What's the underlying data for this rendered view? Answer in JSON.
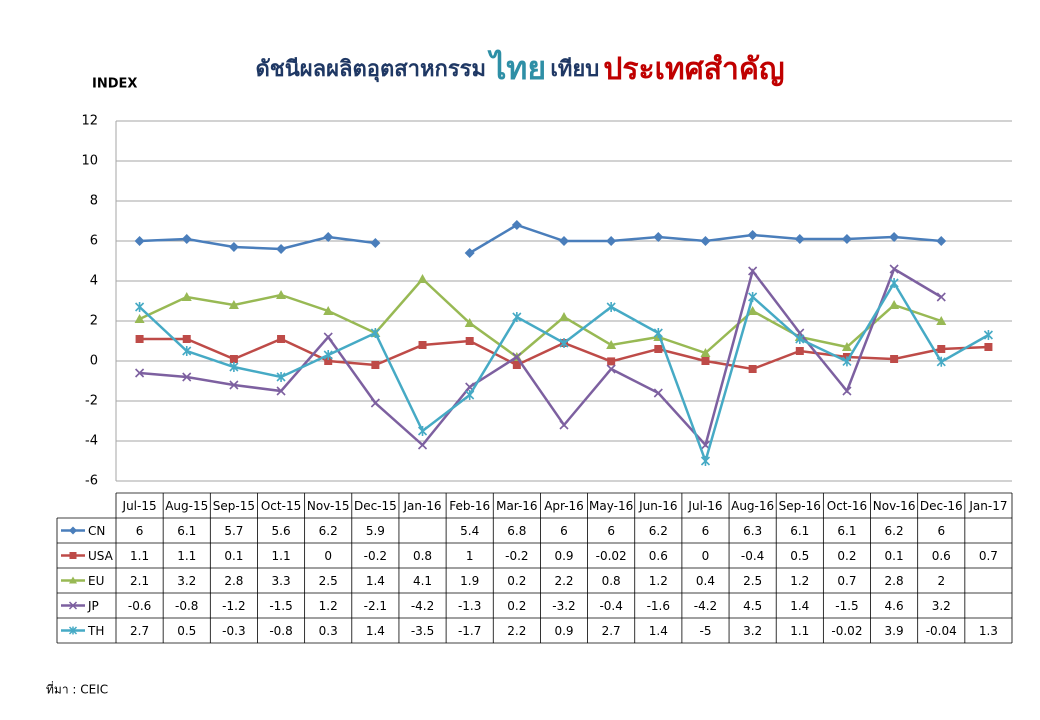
{
  "chart_data": {
    "type": "line",
    "title": [
      "ดัชนีผลผลิตอุตสาหกรรม",
      "ไทย",
      "เทียบ",
      "ประเทศสำคัญ"
    ],
    "y_label": "INDEX",
    "source": "ที่มา : CEIC",
    "categories": [
      "Jul-15",
      "Aug-15",
      "Sep-15",
      "Oct-15",
      "Nov-15",
      "Dec-15",
      "Jan-16",
      "Feb-16",
      "Mar-16",
      "Apr-16",
      "May-16",
      "Jun-16",
      "Jul-16",
      "Aug-16",
      "Sep-16",
      "Oct-16",
      "Nov-16",
      "Dec-16",
      "Jan-17"
    ],
    "ylim": [
      -6,
      12
    ],
    "yticks": [
      -6,
      -4,
      -2,
      0,
      2,
      4,
      6,
      8,
      10,
      12
    ],
    "grid": true,
    "series": [
      {
        "name": "CN",
        "color": "#4a7ebb",
        "marker": "diamond",
        "values": [
          6,
          6.1,
          5.7,
          5.6,
          6.2,
          5.9,
          null,
          5.4,
          6.8,
          6,
          6,
          6.2,
          6,
          6.3,
          6.1,
          6.1,
          6.2,
          6,
          null
        ]
      },
      {
        "name": "USA",
        "color": "#be4b48",
        "marker": "square",
        "values": [
          1.1,
          1.1,
          0.1,
          1.1,
          0,
          -0.2,
          0.8,
          1,
          -0.2,
          0.9,
          -0.02,
          0.6,
          0,
          -0.4,
          0.5,
          0.2,
          0.1,
          0.6,
          0.7
        ]
      },
      {
        "name": "EU",
        "color": "#98b954",
        "marker": "triangle",
        "values": [
          2.1,
          3.2,
          2.8,
          3.3,
          2.5,
          1.4,
          4.1,
          1.9,
          0.2,
          2.2,
          0.8,
          1.2,
          0.4,
          2.5,
          1.2,
          0.7,
          2.8,
          2,
          null
        ]
      },
      {
        "name": "JP",
        "color": "#7d60a0",
        "marker": "x",
        "values": [
          -0.6,
          -0.8,
          -1.2,
          -1.5,
          1.2,
          -2.1,
          -4.2,
          -1.3,
          0.2,
          -3.2,
          -0.4,
          -1.6,
          -4.2,
          4.5,
          1.4,
          -1.5,
          4.6,
          3.2,
          null
        ]
      },
      {
        "name": "TH",
        "color": "#46aac5",
        "marker": "star",
        "values": [
          2.7,
          0.5,
          -0.3,
          -0.8,
          0.3,
          1.4,
          -3.5,
          -1.7,
          2.2,
          0.9,
          2.7,
          1.4,
          -5,
          3.2,
          1.1,
          -0.02,
          3.9,
          -0.04,
          1.3
        ]
      }
    ]
  }
}
